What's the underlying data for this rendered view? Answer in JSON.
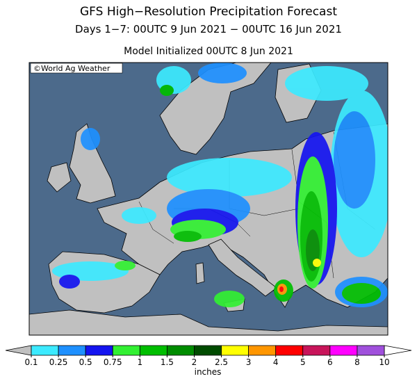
{
  "header": {
    "title": "GFS High−Resolution Precipitation Forecast",
    "subtitle": "Days 1−7: 00UTC 9 Jun 2021 − 00UTC 16 Jun 2021",
    "initialized": "Model Initialized 00UTC 8 Jun 2021",
    "credit": "©World Ag Weather"
  },
  "colorbar": {
    "ticks": [
      0.1,
      0.25,
      0.5,
      0.75,
      1,
      1.5,
      2,
      2.5,
      3,
      4,
      5,
      6,
      8,
      10
    ],
    "colors": [
      "#3ceaff",
      "#1e90ff",
      "#1414f0",
      "#32f032",
      "#00be00",
      "#008c00",
      "#004b00",
      "#ffff00",
      "#ff9600",
      "#ff0000",
      "#c8145a",
      "#ff00ff",
      "#a050dc"
    ],
    "under_color": "#c0c0c0",
    "over_color": "#ffffff",
    "label": "inches"
  }
}
